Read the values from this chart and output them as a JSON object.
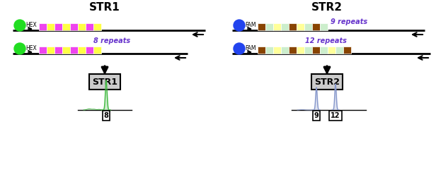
{
  "bg_color": "#ffffff",
  "title1": "STR1",
  "title2": "STR2",
  "str1_label": "STR1",
  "str2_label": "STR2",
  "hex_color": "#22dd22",
  "fam_color": "#2244ee",
  "repeat_colors_str1": [
    "#ee44ee",
    "#ffff44",
    "#ee44ee",
    "#ffff44",
    "#ee44ee",
    "#ffff44",
    "#ee44ee",
    "#ffff44"
  ],
  "repeat_colors_str2_9": [
    "#884400",
    "#cceecc",
    "#ffff99",
    "#cceecc",
    "#884400",
    "#ffff99",
    "#cceecc",
    "#884400",
    "#cceecc"
  ],
  "repeat_colors_str2_12": [
    "#884400",
    "#cceecc",
    "#ffff99",
    "#cceecc",
    "#884400",
    "#ffff99",
    "#cceecc",
    "#884400",
    "#cceecc",
    "#ffff99",
    "#cceecc",
    "#884400"
  ],
  "repeat_8_label": "8 repeats",
  "repeat_9_label": "9 repeats",
  "repeat_12_label": "12 repeats",
  "peak1_color": "#44bb44",
  "peak2_color": "#8899cc",
  "label_8": "8",
  "label_9": "9",
  "label_12": "12",
  "repeat_label_color": "#6633cc",
  "title_fontsize": 11,
  "label_fontsize": 8,
  "repeat_label_fontsize": 7
}
